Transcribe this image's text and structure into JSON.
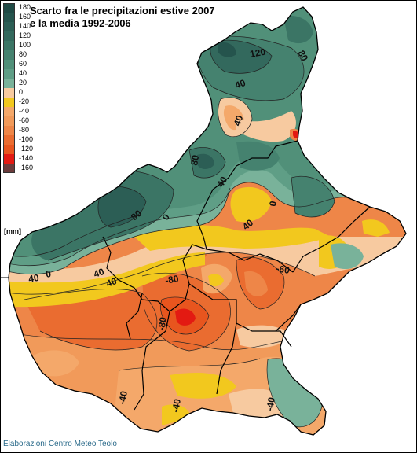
{
  "title": {
    "line1": "Scarto fra le precipitazioni estive 2007",
    "line2": "e la media 1992-2006"
  },
  "legend": {
    "unit": "[mm]",
    "classes": [
      {
        "label": "180",
        "color": "#1f4a45"
      },
      {
        "label": "160",
        "color": "#25544d"
      },
      {
        "label": "140",
        "color": "#2c5e55"
      },
      {
        "label": "120",
        "color": "#33695d"
      },
      {
        "label": "100",
        "color": "#3b7565"
      },
      {
        "label": "80",
        "color": "#45826f"
      },
      {
        "label": "60",
        "color": "#519079"
      },
      {
        "label": "40",
        "color": "#5f9e86"
      },
      {
        "label": "20",
        "color": "#79b29a"
      },
      {
        "label": "0",
        "color": "#f7caa0"
      },
      {
        "label": "-20",
        "color": "#f2c81e"
      },
      {
        "label": "-40",
        "color": "#f4a86a"
      },
      {
        "label": "-60",
        "color": "#f19a5a"
      },
      {
        "label": "-80",
        "color": "#ee8648"
      },
      {
        "label": "-100",
        "color": "#ea6c30"
      },
      {
        "label": "-120",
        "color": "#e8551e"
      },
      {
        "label": "-140",
        "color": "#e31a12"
      },
      {
        "label": "-160",
        "color": "#6b3b3b"
      }
    ]
  },
  "contour_labels": [
    "120",
    "80",
    "40",
    "40",
    "80",
    "40",
    "80",
    "0",
    "0",
    "40",
    "40",
    "0",
    "40",
    "40",
    "-80",
    "-60",
    "-80",
    "-40",
    "-40",
    "-40"
  ],
  "credit": "Elaborazioni Centro Meteo Teolo"
}
